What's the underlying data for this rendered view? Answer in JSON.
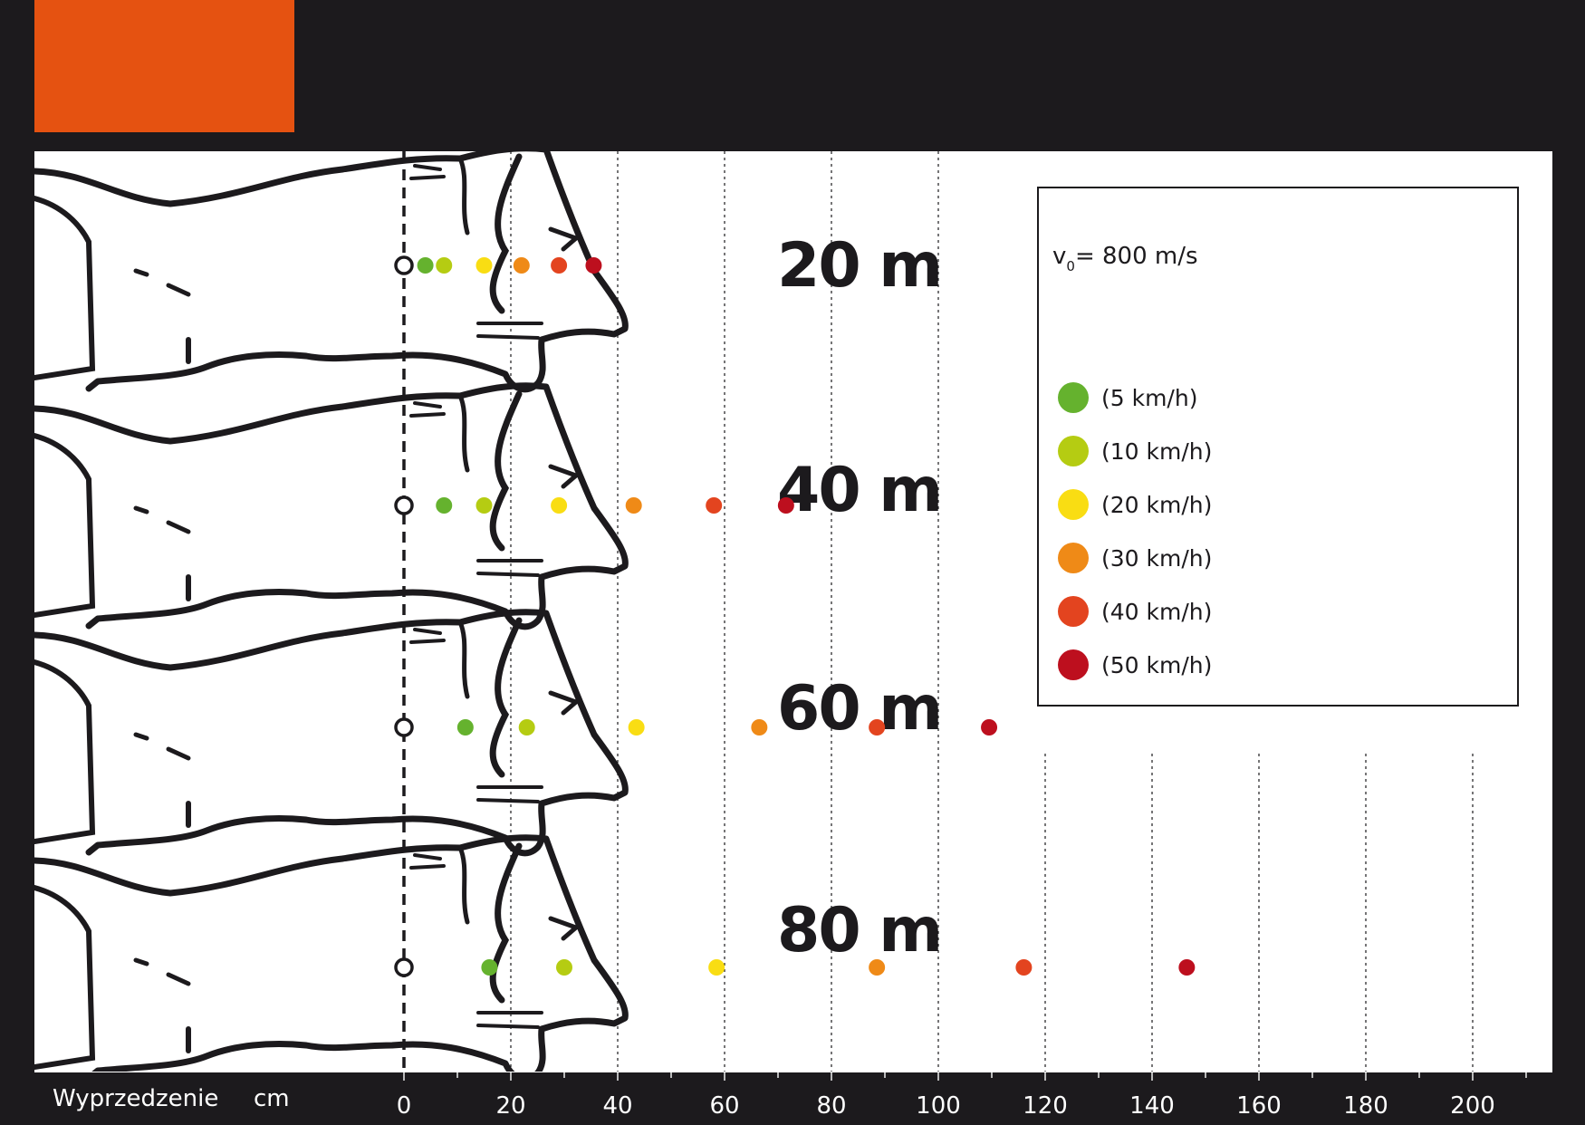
{
  "colors": {
    "background": "#1c1a1d",
    "accent": "#e55211",
    "panel": "#ffffff",
    "outline": "#1c1a1d"
  },
  "chart_data": {
    "type": "scatter",
    "xlabel": "Wyprzedzenie",
    "xunit": "cm",
    "xlim": [
      0,
      210
    ],
    "xticks": [
      "0",
      "20",
      "40",
      "60",
      "80",
      "100",
      "120",
      "140",
      "160",
      "180",
      "200"
    ],
    "legend": {
      "placement": "top-right",
      "title_symbol": "v",
      "title_subscript": "0",
      "title_value": "= 800 m/s"
    },
    "series": [
      {
        "name": "(5 km/h)",
        "color": "#65b22e"
      },
      {
        "name": "(10 km/h)",
        "color": "#b5cc12"
      },
      {
        "name": "(20 km/h)",
        "color": "#f9dd13"
      },
      {
        "name": "(30 km/h)",
        "color": "#ef8a17"
      },
      {
        "name": "(40 km/h)",
        "color": "#e3441f"
      },
      {
        "name": "(50 km/h)",
        "color": "#bd0f1e"
      }
    ],
    "rows": [
      {
        "distance": "20 m",
        "values": [
          4,
          7.5,
          15,
          22,
          29,
          35.5
        ]
      },
      {
        "distance": "40 m",
        "values": [
          7.5,
          15,
          29,
          43,
          58,
          71.5
        ]
      },
      {
        "distance": "60 m",
        "values": [
          11.5,
          23,
          43.5,
          66.5,
          88.5,
          109.5
        ]
      },
      {
        "distance": "80 m",
        "values": [
          16,
          30,
          58.5,
          88.5,
          116,
          146.5
        ]
      }
    ]
  }
}
